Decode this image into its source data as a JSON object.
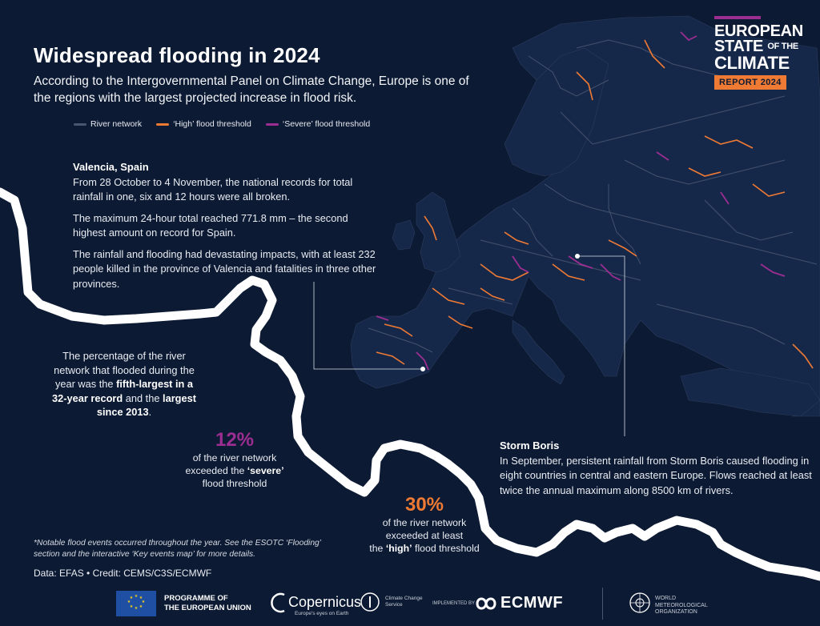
{
  "header": {
    "title": "Widespread flooding in 2024",
    "subtitle": "According to the Intergovernmental Panel on Climate Change, Europe is one of the regions with the largest projected increase in flood risk."
  },
  "legend": [
    {
      "label": "River network",
      "color": "#4a5670"
    },
    {
      "label": "‘High’ flood threshold",
      "color": "#ef7a33"
    },
    {
      "label": "‘Severe’ flood threshold",
      "color": "#9c2d91"
    }
  ],
  "valencia": {
    "heading": "Valencia, Spain",
    "p1": "From 28 October to 4 November, the national records for total rainfall in one, six and 12 hours were all broken.",
    "p2": "The maximum 24-hour total reached 771.8 mm – the second highest amount on record for Spain.",
    "p3": "The rainfall and flooding had devastating impacts, with at least 232 people killed in the province of Valencia and fatalities in three other provinces."
  },
  "boris": {
    "heading": "Storm Boris",
    "body": "In September, persistent rainfall from Storm Boris caused flooding in eight countries in central and eastern Europe. Flows reached at least twice the annual maximum along 8500 km of rivers."
  },
  "percentage_note": {
    "pre": "The percentage of the river network that flooded during the year was the ",
    "bold1": "fifth-largest in a 32-year record",
    "mid": " and the ",
    "bold2": "largest",
    "post_bold": " since 2013",
    "end": "."
  },
  "stat_severe": {
    "value": "12%",
    "line1": "of the river network",
    "line2_pre": "exceeded the ",
    "line2_bold": "‘severe’",
    "line3": "flood threshold"
  },
  "stat_high": {
    "value": "30%",
    "line1": "of the river network",
    "line2": "exceeded at least",
    "line3_pre": "the ",
    "line3_bold": "‘high’",
    "line3_post": " flood threshold"
  },
  "footnote": "*Notable flood events occurred throughout the year. See the ESOTC ‘Flooding’ section and the interactive ‘Key events map’ for more details.",
  "credit": "Data: EFAS • Credit: CEMS/C3S/ECMWF",
  "brand": {
    "line1": "EUROPEAN",
    "line2_a": "STATE",
    "line2_b": "OF THE",
    "line3": "CLIMATE",
    "report": "REPORT 2024"
  },
  "logos": {
    "eu_line1": "PROGRAMME OF",
    "eu_line2": "THE EUROPEAN UNION",
    "copernicus": "Copernicus",
    "copernicus_tag": "Europe's eyes on Earth",
    "c3s": "Climate Change Service",
    "implemented": "IMPLEMENTED BY",
    "ecmwf": "ECMWF",
    "wmo": "WORLD METEOROLOGICAL ORGANIZATION"
  },
  "colors": {
    "background": "#0c1a33",
    "high": "#ef7a33",
    "severe": "#9c2d91",
    "river": "#4a5670"
  }
}
